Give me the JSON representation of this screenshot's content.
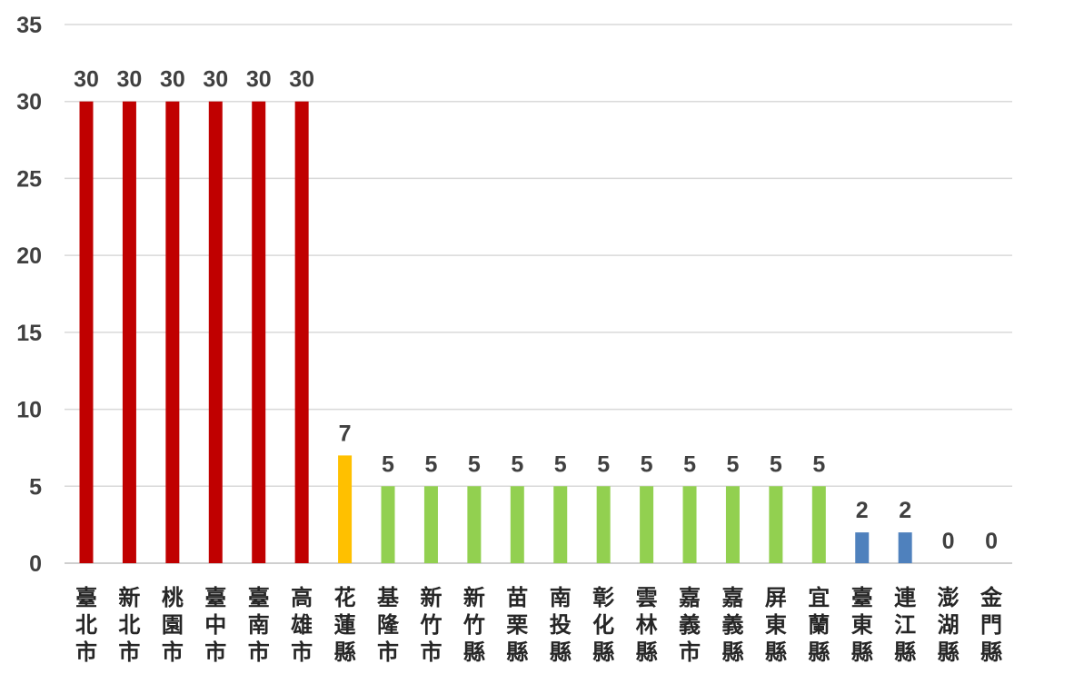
{
  "chart_data": {
    "type": "bar",
    "title": "",
    "xlabel": "",
    "ylabel": "",
    "ylim": [
      0,
      35
    ],
    "yticks": [
      0,
      5,
      10,
      15,
      20,
      25,
      30,
      35
    ],
    "grid": true,
    "legend": "none",
    "categories": [
      "臺北市",
      "新北市",
      "桃園市",
      "臺中市",
      "臺南市",
      "高雄市",
      "花蓮縣",
      "基隆市",
      "新竹市",
      "新竹縣",
      "苗栗縣",
      "南投縣",
      "彰化縣",
      "雲林縣",
      "嘉義市",
      "嘉義縣",
      "屏東縣",
      "宜蘭縣",
      "臺東縣",
      "連江縣",
      "澎湖縣",
      "金門縣"
    ],
    "values": [
      30,
      30,
      30,
      30,
      30,
      30,
      7,
      5,
      5,
      5,
      5,
      5,
      5,
      5,
      5,
      5,
      5,
      5,
      2,
      2,
      0,
      0
    ],
    "data_labels": [
      "30",
      "30",
      "30",
      "30",
      "30",
      "30",
      "7",
      "5",
      "5",
      "5",
      "5",
      "5",
      "5",
      "5",
      "5",
      "5",
      "5",
      "5",
      "2",
      "2",
      "0",
      "0"
    ],
    "bar_colors": [
      "#c00000",
      "#c00000",
      "#c00000",
      "#c00000",
      "#c00000",
      "#c00000",
      "#ffc000",
      "#92d050",
      "#92d050",
      "#92d050",
      "#92d050",
      "#92d050",
      "#92d050",
      "#92d050",
      "#92d050",
      "#92d050",
      "#92d050",
      "#92d050",
      "#4f81bd",
      "#4f81bd",
      "#4f81bd",
      "#4f81bd"
    ]
  }
}
